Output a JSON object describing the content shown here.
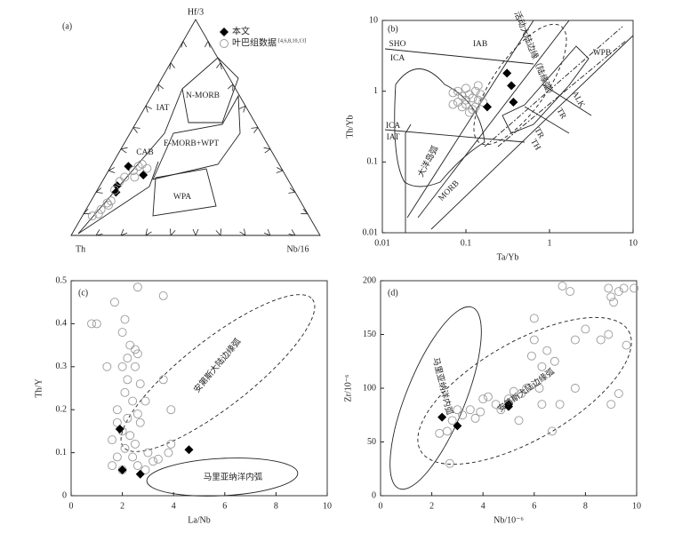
{
  "chart_data": [
    {
      "type": "ternary",
      "panel_label": "(a)",
      "components": [
        "Th",
        "Hf/3",
        "Nb/16"
      ],
      "legend_note": "[4,6,8,10,13]",
      "annotations": [
        "N-MORB",
        "IAT",
        "CAB",
        "E-MORB+WPT",
        "WPA"
      ],
      "series": [
        {
          "name": "本文",
          "marker": "diamond",
          "color": "#000000",
          "values": [
            [
              61,
              32,
              7
            ],
            [
              70,
              23,
              7
            ],
            [
              72,
              20,
              8
            ],
            [
              57,
              28,
              15
            ]
          ]
        },
        {
          "name": "叶巴组数据",
          "marker": "open-circle",
          "color": "#999999",
          "values": [
            [
              87,
              9,
              4
            ],
            [
              84,
              10,
              6
            ],
            [
              82,
              12,
              6
            ],
            [
              78,
              15,
              7
            ],
            [
              76,
              16,
              8
            ],
            [
              72,
              21,
              7
            ],
            [
              68,
              25,
              7
            ],
            [
              65,
              27,
              8
            ],
            [
              60,
              30,
              10
            ],
            [
              57,
              32,
              11
            ],
            [
              55,
              33,
              12
            ],
            [
              54,
              31,
              15
            ],
            [
              61,
              27,
              12
            ],
            [
              78,
              14,
              8
            ]
          ]
        }
      ]
    },
    {
      "type": "scatter",
      "panel_label": "(b)",
      "x_label": "Ta/Yb",
      "y_label": "Th/Yb",
      "log": true,
      "xlim": [
        0.01,
        10
      ],
      "ylim": [
        0.01,
        10
      ],
      "xticks": [
        0.01,
        0.1,
        1,
        10
      ],
      "yticks": [
        0.01,
        0.1,
        1,
        10
      ],
      "annotations": [
        "SHO",
        "ICA",
        "IAB",
        "ICA",
        "IAT",
        "大洋岛弧",
        "MORB",
        "WPB",
        "ALK",
        "TR",
        "TR",
        "TH",
        "活动大陆边缘（陆缘弧）"
      ],
      "series": [
        {
          "marker": "open-circle",
          "color": "#999999",
          "x": [
            0.07,
            0.08,
            0.09,
            0.1,
            0.11,
            0.12,
            0.13,
            0.14,
            0.15,
            0.08,
            0.09,
            0.1,
            0.12,
            0.13,
            0.16,
            0.11,
            0.14,
            0.1,
            0.07
          ],
          "values": [
            0.95,
            1.0,
            0.85,
            1.1,
            0.9,
            0.8,
            1.0,
            0.75,
            0.9,
            0.7,
            0.6,
            0.65,
            0.55,
            0.6,
            0.7,
            0.5,
            1.2,
            0.75,
            0.65
          ]
        },
        {
          "marker": "diamond",
          "color": "#000000",
          "x": [
            0.31,
            0.35,
            0.37,
            0.18
          ],
          "values": [
            1.8,
            1.2,
            0.7,
            0.6
          ]
        }
      ]
    },
    {
      "type": "scatter",
      "panel_label": "(c)",
      "x_label": "La/Nb",
      "y_label": "Th/Y",
      "xlim": [
        0,
        10
      ],
      "ylim": [
        0,
        0.5
      ],
      "xticks": [
        0,
        2,
        4,
        6,
        8,
        10
      ],
      "yticks": [
        0,
        0.1,
        0.2,
        0.3,
        0.4,
        0.5
      ],
      "annotations": [
        "安第斯大陆边缘弧",
        "马里亚纳洋内弧"
      ],
      "series": [
        {
          "marker": "open-circle",
          "color": "#999999",
          "x": [
            0.8,
            1.0,
            1.7,
            2.6,
            3.6,
            2.1,
            2.0,
            2.3,
            2.5,
            2.6,
            2.2,
            2.0,
            2.5,
            1.4,
            3.6,
            2.2,
            2.7,
            2.1,
            2.4,
            1.8,
            2.9,
            3.9,
            2.6,
            2.2,
            2.7,
            1.8,
            2.0,
            2.3,
            1.6,
            2.5,
            3.9,
            2.1,
            3.0,
            1.8,
            2.4,
            3.2,
            1.6,
            2.0,
            2.6,
            3.4,
            3.8,
            2.9
          ],
          "values": [
            0.4,
            0.4,
            0.45,
            0.485,
            0.465,
            0.41,
            0.38,
            0.35,
            0.34,
            0.33,
            0.32,
            0.3,
            0.3,
            0.3,
            0.27,
            0.27,
            0.26,
            0.24,
            0.22,
            0.2,
            0.22,
            0.2,
            0.19,
            0.18,
            0.17,
            0.17,
            0.15,
            0.14,
            0.13,
            0.12,
            0.12,
            0.11,
            0.1,
            0.09,
            0.09,
            0.08,
            0.07,
            0.06,
            0.07,
            0.085,
            0.1,
            0.06
          ]
        },
        {
          "marker": "diamond",
          "color": "#000000",
          "x": [
            1.9,
            2.0,
            2.7,
            4.6
          ],
          "values": [
            0.155,
            0.06,
            0.05,
            0.107
          ]
        }
      ]
    },
    {
      "type": "scatter",
      "panel_label": "(d)",
      "x_label": "Nb/10⁻⁶",
      "y_label": "Zr/10⁻⁶",
      "xlim": [
        0,
        10
      ],
      "ylim": [
        0,
        200
      ],
      "xticks": [
        0,
        2,
        4,
        6,
        8,
        10
      ],
      "yticks": [
        0,
        50,
        100,
        150,
        200
      ],
      "annotations": [
        "马里亚纳洋内弧",
        "安第斯大陆边缘弧"
      ],
      "series": [
        {
          "marker": "open-circle",
          "color": "#999999",
          "x": [
            2.3,
            2.6,
            2.8,
            3.0,
            3.2,
            3.5,
            3.7,
            3.9,
            4.0,
            4.2,
            4.5,
            4.7,
            5.0,
            5.2,
            5.5,
            5.7,
            5.9,
            6.0,
            6.0,
            6.2,
            6.3,
            6.5,
            6.8,
            7.0,
            7.1,
            7.4,
            7.6,
            7.6,
            8.0,
            8.6,
            8.9,
            9.0,
            9.1,
            9.3,
            9.0,
            9.3,
            9.6,
            9.9,
            9.5,
            8.9,
            2.7,
            5.4,
            6.7,
            6.3
          ],
          "values": [
            58,
            60,
            70,
            80,
            75,
            80,
            72,
            78,
            90,
            92,
            85,
            80,
            90,
            97,
            95,
            100,
            130,
            145,
            165,
            100,
            120,
            135,
            125,
            85,
            195,
            190,
            100,
            145,
            155,
            145,
            150,
            185,
            180,
            190,
            85,
            95,
            140,
            193,
            193,
            193,
            30,
            70,
            60,
            85
          ]
        },
        {
          "marker": "diamond",
          "color": "#000000",
          "x": [
            2.4,
            3.0,
            5.0,
            5.0
          ],
          "values": [
            73,
            65,
            85,
            83
          ]
        }
      ]
    }
  ]
}
